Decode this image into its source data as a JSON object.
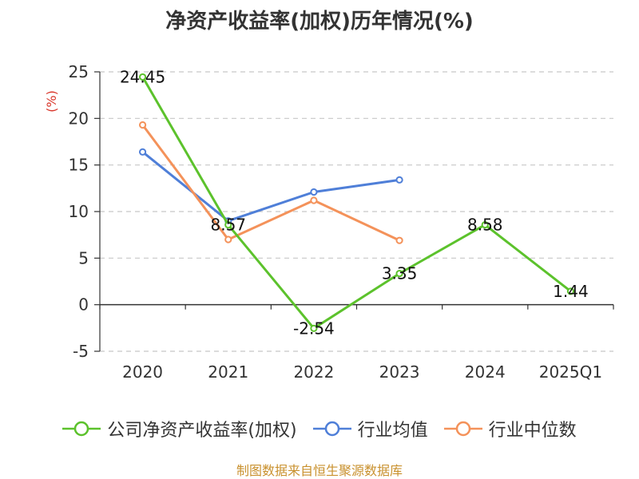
{
  "chart_data": {
    "type": "line",
    "title": "净资产收益率(加权)历年情况(%)",
    "ylabel": "(%)",
    "xlabel": "",
    "ylim": [
      -5,
      25
    ],
    "yticks": [
      -5,
      0,
      5,
      10,
      15,
      20,
      25
    ],
    "categories": [
      "2020",
      "2021",
      "2022",
      "2023",
      "2024",
      "2025Q1"
    ],
    "grid": true,
    "legend_position": "bottom",
    "series": [
      {
        "name": "公司净资产收益率(加权)",
        "color": "#5cc22c",
        "values": [
          24.45,
          8.57,
          -2.54,
          3.35,
          8.58,
          1.44
        ],
        "labels": [
          "24.45",
          "8.57",
          "-2.54",
          "3.35",
          "8.58",
          "1.44"
        ]
      },
      {
        "name": "行业均值",
        "color": "#4f7fd8",
        "values": [
          16.4,
          9.0,
          12.1,
          13.4,
          null,
          null
        ]
      },
      {
        "name": "行业中位数",
        "color": "#f4925a",
        "values": [
          19.3,
          7.0,
          11.2,
          6.9,
          null,
          null
        ]
      }
    ]
  },
  "source": "制图数据来自恒生聚源数据库"
}
